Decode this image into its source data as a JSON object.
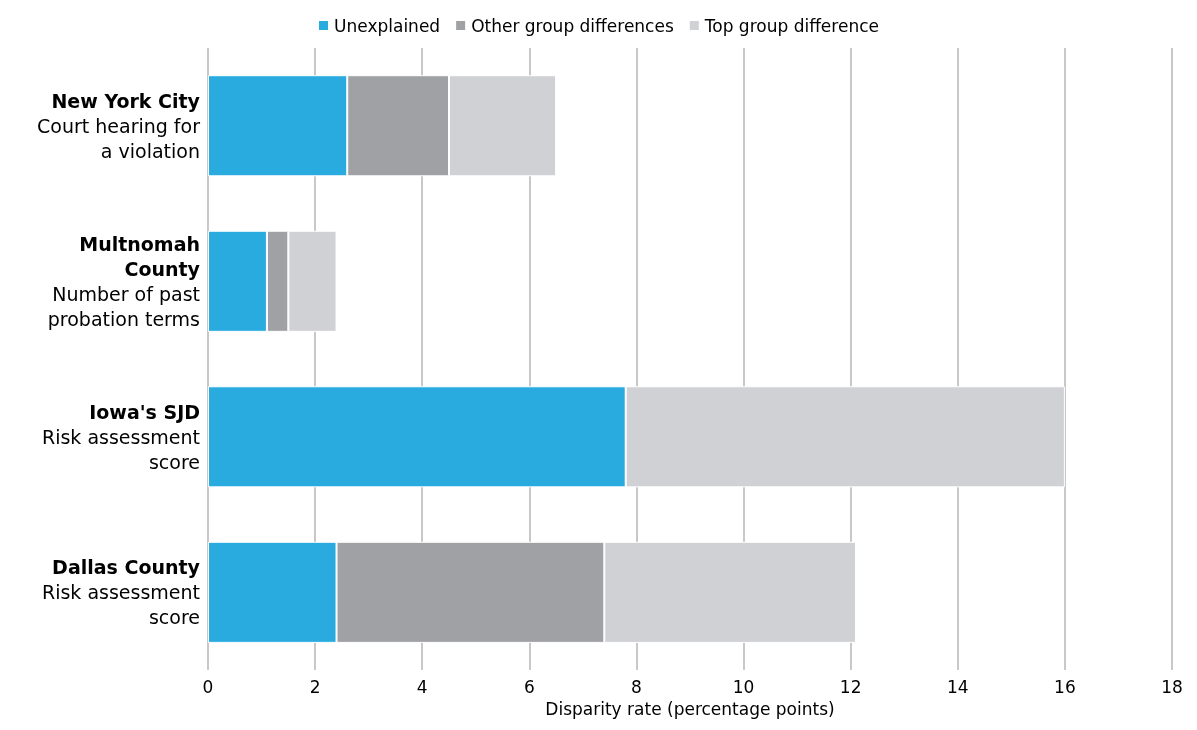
{
  "chart_data": {
    "type": "bar",
    "orientation": "horizontal",
    "stacked": true,
    "categories": [
      "New York City\nCourt hearing for a violation",
      "Multnomah County\nNumber of past probation terms",
      "Iowa's SJD\nRisk assessment score",
      "Dallas County\nRisk assessment score"
    ],
    "series": [
      {
        "name": "Unexplained",
        "color": "#29abe0",
        "values": [
          2.6,
          1.1,
          7.8,
          2.4
        ]
      },
      {
        "name": "Other group differences",
        "color": "#a0a1a4",
        "values": [
          1.9,
          0.4,
          0,
          5.0
        ]
      },
      {
        "name": "Top group difference",
        "color": "#d0d1d4",
        "values": [
          2.0,
          0.9,
          8.2,
          4.7
        ]
      }
    ],
    "xlabel": "Disparity rate (percentage points)",
    "xlim": [
      0,
      18
    ],
    "xticks": [
      0,
      2,
      4,
      6,
      8,
      10,
      12,
      14,
      16,
      18
    ],
    "grid": "x",
    "legend": "top"
  }
}
